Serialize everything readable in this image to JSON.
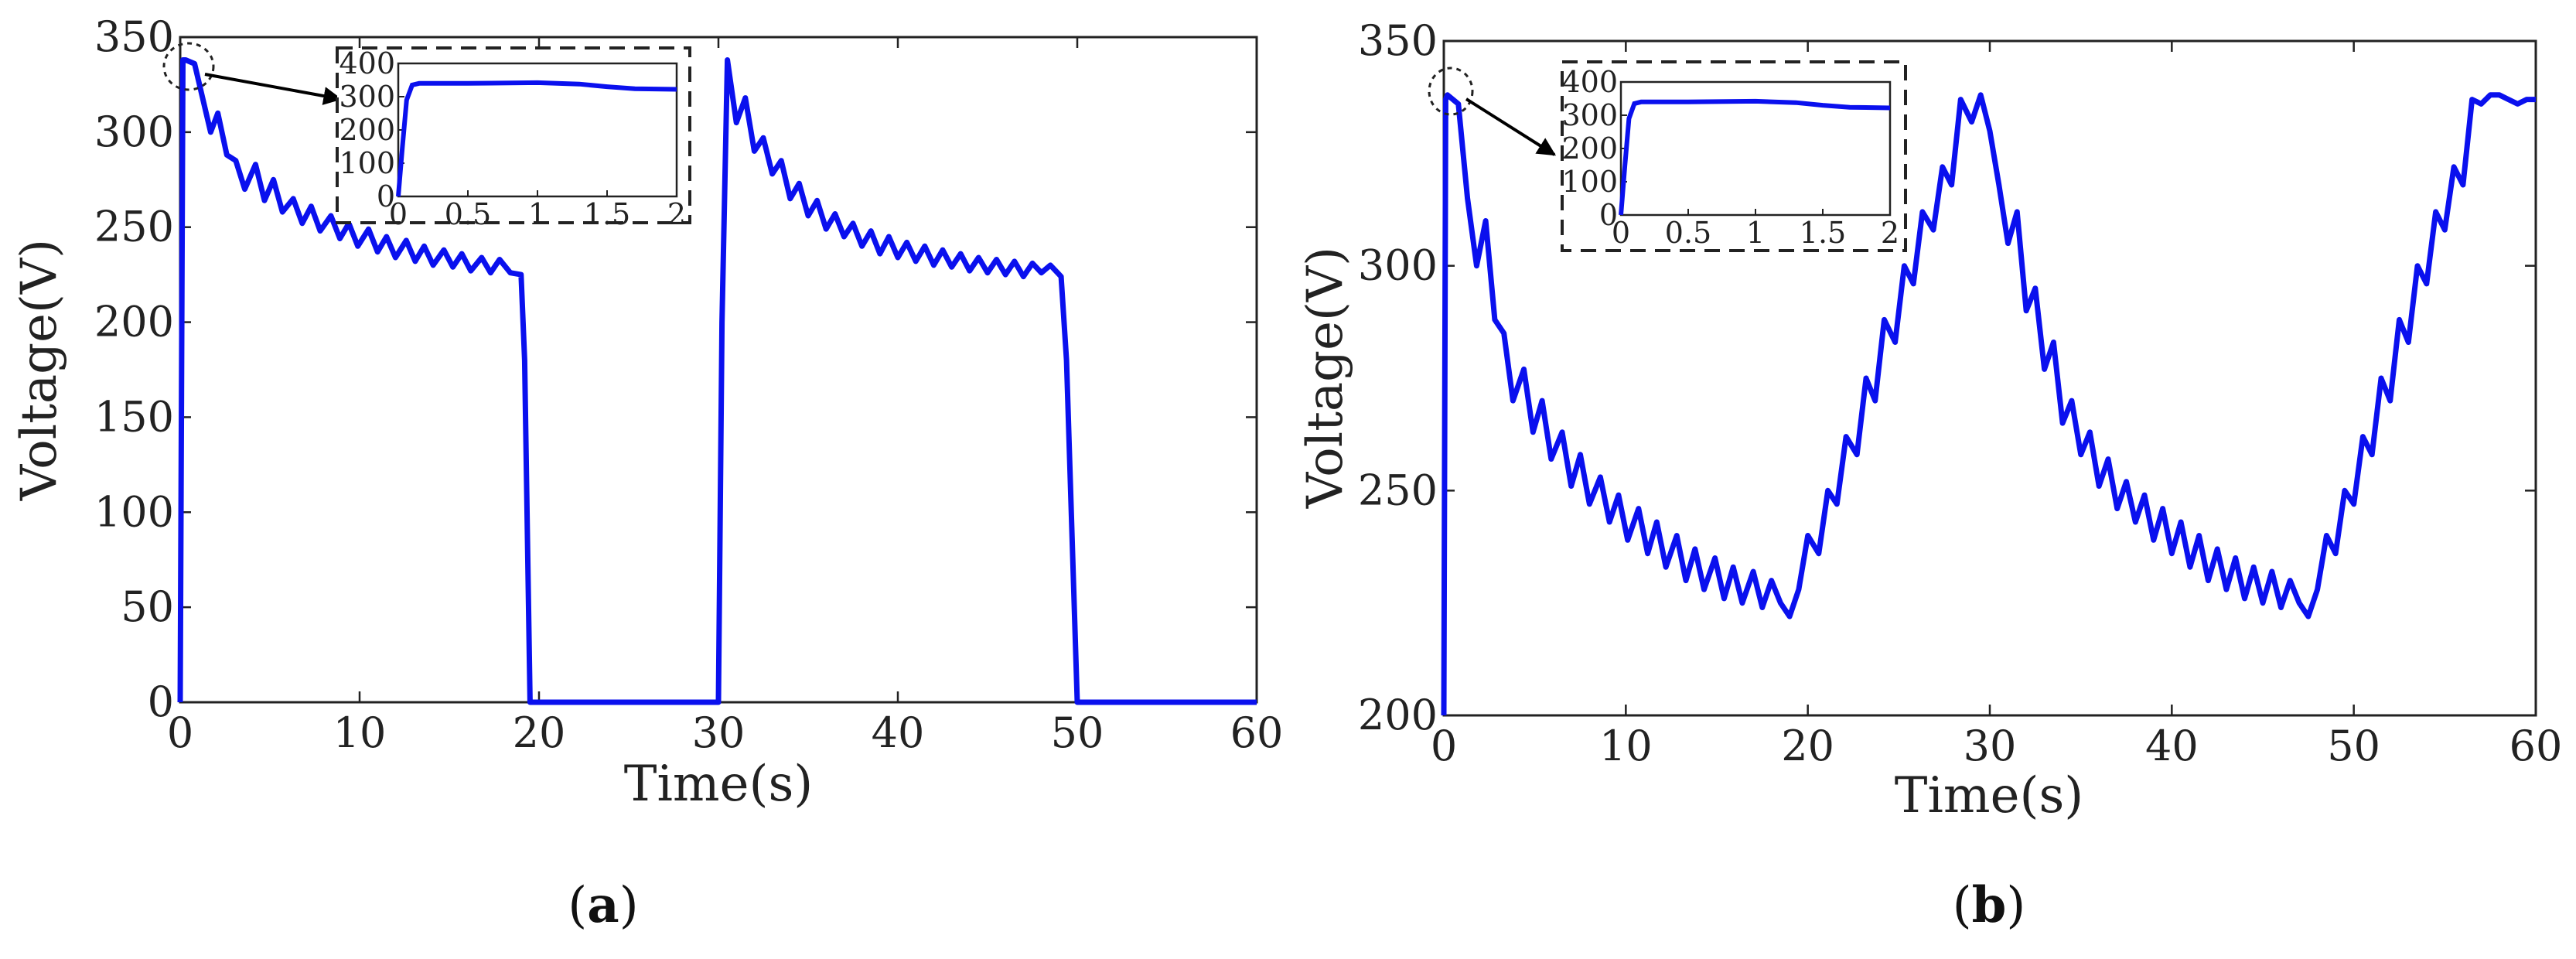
{
  "panels": [
    {
      "label_open": "(",
      "letter": "a",
      "label_close": ")"
    },
    {
      "label_open": "(",
      "letter": "b",
      "label_close": ")"
    }
  ],
  "chart_data": [
    {
      "type": "line",
      "panel": "a",
      "xlabel": "Time(s)",
      "ylabel": "Voltage(V)",
      "xlim": [
        0,
        60
      ],
      "ylim": [
        0,
        350
      ],
      "xticks": [
        0,
        10,
        20,
        30,
        40,
        50,
        60
      ],
      "yticks": [
        0,
        50,
        100,
        150,
        200,
        250,
        300,
        350
      ],
      "grid": false,
      "line_color": "#0a10ee",
      "series": [
        {
          "x": [
            0,
            0.15,
            0.3,
            0.8,
            1.2,
            1.7,
            2.1,
            2.6,
            3.1,
            3.6,
            4.2,
            4.7,
            5.2,
            5.7,
            6.3,
            6.8,
            7.3,
            7.8,
            8.4,
            8.9,
            9.4,
            9.9,
            10.5,
            11.0,
            11.5,
            12.0,
            12.6,
            13.1,
            13.6,
            14.1,
            14.7,
            15.2,
            15.7,
            16.2,
            16.8,
            17.3,
            17.8,
            18.4,
            19.0,
            19.2,
            19.5,
            20,
            30,
            30.2,
            30.5,
            31.0,
            31.5,
            32.0,
            32.5,
            33.0,
            33.5,
            34.0,
            34.5,
            35.0,
            35.5,
            36.0,
            36.5,
            37.0,
            37.5,
            38.0,
            38.5,
            39.0,
            39.5,
            40.0,
            40.5,
            41.0,
            41.5,
            42.0,
            42.5,
            43.0,
            43.5,
            44.0,
            44.5,
            45.0,
            45.5,
            46.0,
            46.5,
            47.0,
            47.5,
            48.0,
            48.5,
            48.9,
            49.1,
            49.4,
            50,
            60
          ],
          "y": [
            0,
            338,
            338,
            336,
            320,
            300,
            310,
            288,
            285,
            270,
            283,
            264,
            275,
            258,
            265,
            252,
            261,
            248,
            256,
            244,
            252,
            240,
            249,
            237,
            245,
            234,
            243,
            232,
            240,
            230,
            238,
            229,
            236,
            227,
            234,
            226,
            233,
            226,
            225,
            180,
            0,
            0,
            0,
            200,
            338,
            305,
            318,
            290,
            297,
            278,
            285,
            265,
            273,
            256,
            264,
            249,
            257,
            245,
            252,
            240,
            248,
            236,
            245,
            234,
            242,
            232,
            240,
            230,
            238,
            229,
            236,
            227,
            234,
            226,
            233,
            225,
            232,
            224,
            231,
            226,
            230,
            226,
            224,
            180,
            0,
            0
          ]
        }
      ],
      "inset": {
        "xlim": [
          0,
          2
        ],
        "ylim": [
          0,
          400
        ],
        "xticks": [
          "0",
          "0.5",
          "1",
          "1.5",
          "2"
        ],
        "yticks": [
          "0",
          "100",
          "200",
          "300",
          "400"
        ],
        "x": [
          0,
          0.03,
          0.06,
          0.1,
          0.15,
          0.25,
          0.5,
          1.0,
          1.3,
          1.5,
          1.7,
          2.0
        ],
        "y": [
          0,
          150,
          290,
          335,
          340,
          340,
          340,
          342,
          338,
          330,
          324,
          322
        ]
      }
    },
    {
      "type": "line",
      "panel": "b",
      "xlabel": "Time(s)",
      "ylabel": "Voltage(V)",
      "xlim": [
        0,
        60
      ],
      "ylim": [
        200,
        350
      ],
      "xticks": [
        0,
        10,
        20,
        30,
        40,
        50,
        60
      ],
      "yticks": [
        200,
        250,
        300,
        350
      ],
      "grid": false,
      "line_color": "#0a10ee",
      "series": [
        {
          "x": [
            0,
            0.1,
            0.2,
            0.8,
            1.3,
            1.8,
            2.3,
            2.8,
            3.3,
            3.8,
            4.4,
            4.9,
            5.4,
            5.9,
            6.5,
            7.0,
            7.5,
            8.0,
            8.6,
            9.1,
            9.6,
            10.1,
            10.7,
            11.2,
            11.7,
            12.2,
            12.8,
            13.3,
            13.8,
            14.3,
            14.9,
            15.4,
            15.9,
            16.4,
            17.0,
            17.5,
            18.0,
            18.5,
            19.0,
            19.5,
            20.0,
            20.6,
            21.1,
            21.6,
            22.1,
            22.7,
            23.2,
            23.7,
            24.2,
            24.8,
            25.3,
            25.8,
            26.3,
            26.9,
            27.4,
            27.9,
            28.4,
            29.0,
            29.5,
            30.0,
            30.5,
            31.0,
            31.5,
            32.0,
            32.5,
            33.0,
            33.5,
            34.0,
            34.5,
            35.0,
            35.5,
            36.0,
            36.5,
            37.0,
            37.5,
            38.0,
            38.5,
            39.0,
            39.5,
            40.0,
            40.5,
            41.0,
            41.5,
            42.0,
            42.5,
            43.0,
            43.5,
            44.0,
            44.5,
            45.0,
            45.5,
            46.0,
            46.5,
            47.0,
            47.5,
            48.0,
            48.5,
            49.0,
            49.5,
            50.0,
            50.5,
            51.0,
            51.5,
            52.0,
            52.5,
            53.0,
            53.5,
            54.0,
            54.5,
            55.0,
            55.5,
            56.0,
            56.5,
            57.0,
            57.5,
            58.0,
            58.5,
            59.0,
            59.5,
            60.0
          ],
          "y": [
            200,
            337,
            338,
            336,
            315,
            300,
            310,
            288,
            285,
            270,
            277,
            263,
            270,
            257,
            263,
            251,
            258,
            247,
            253,
            243,
            249,
            239,
            246,
            236,
            243,
            233,
            240,
            230,
            237,
            228,
            235,
            226,
            233,
            225,
            232,
            224,
            230,
            225,
            222,
            228,
            240,
            236,
            250,
            247,
            262,
            258,
            275,
            270,
            288,
            283,
            300,
            296,
            312,
            308,
            322,
            318,
            337,
            332,
            338,
            330,
            318,
            305,
            312,
            290,
            295,
            277,
            283,
            265,
            270,
            258,
            263,
            251,
            257,
            246,
            252,
            243,
            249,
            239,
            246,
            236,
            243,
            233,
            240,
            230,
            237,
            228,
            235,
            226,
            233,
            225,
            232,
            224,
            230,
            225,
            222,
            228,
            240,
            236,
            250,
            247,
            262,
            258,
            275,
            270,
            288,
            283,
            300,
            296,
            312,
            308,
            322,
            318,
            337,
            336,
            338,
            338,
            337,
            336,
            337,
            337
          ]
        }
      ],
      "inset": {
        "xlim": [
          0,
          2
        ],
        "ylim": [
          0,
          400
        ],
        "xticks": [
          "0",
          "0.5",
          "1",
          "1.5",
          "2"
        ],
        "yticks": [
          "0",
          "100",
          "200",
          "300",
          "400"
        ],
        "x": [
          0,
          0.03,
          0.06,
          0.1,
          0.15,
          0.25,
          0.5,
          1.0,
          1.3,
          1.5,
          1.7,
          2.0
        ],
        "y": [
          0,
          150,
          290,
          335,
          340,
          340,
          340,
          342,
          338,
          330,
          324,
          322
        ]
      }
    }
  ]
}
